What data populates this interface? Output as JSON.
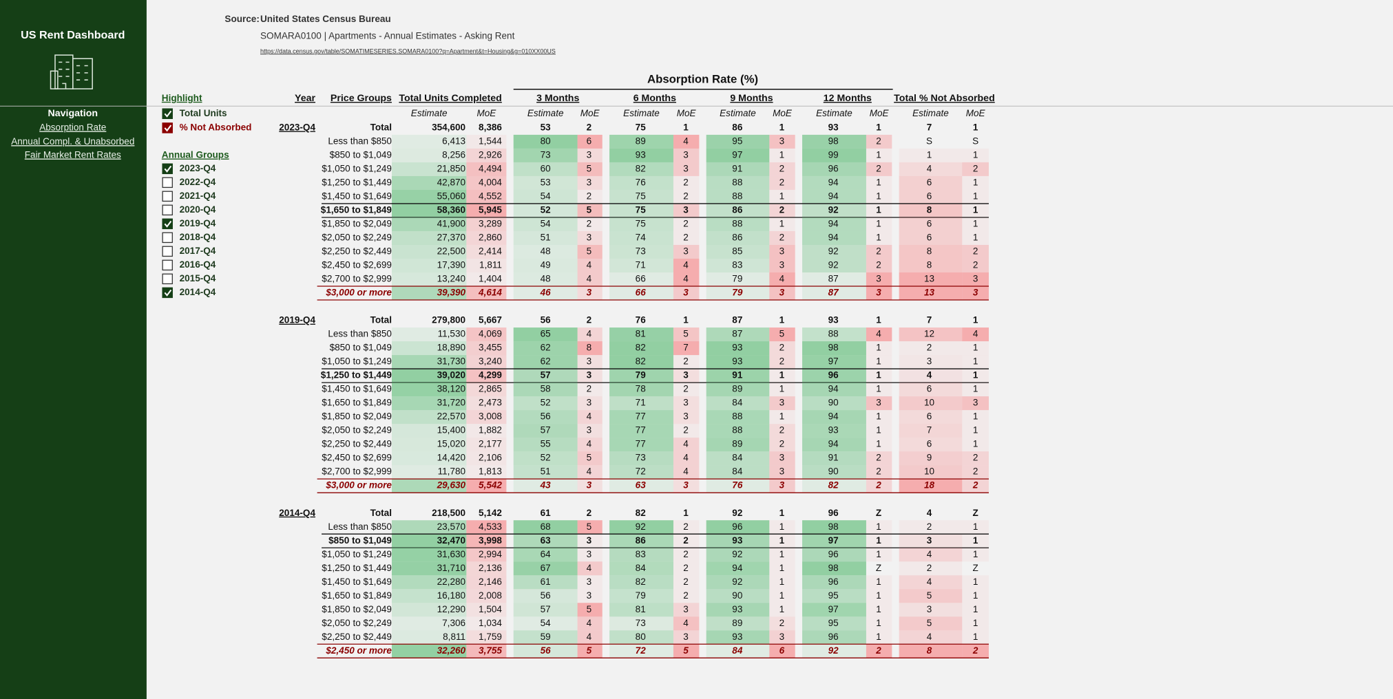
{
  "sidebar": {
    "title": "US Rent Dashboard",
    "nav_title": "Navigation",
    "links": [
      "Absorption Rate",
      "Annual Compl. & Unabsorbed",
      "Fair Market Rent Rates"
    ]
  },
  "header": {
    "source_label": "Source:",
    "source": "United States Census Bureau",
    "subtitle": "SOMARA0100  |  Apartments - Annual Estimates - Asking Rent",
    "url": "https://data.census.gov/table/SOMATIMESERIES.SOMARA0100?q=Apartment&t=Housing&g=010XX00US"
  },
  "filters": {
    "highlight_title": "Highlight",
    "highlight": [
      {
        "label": "Total Units",
        "checked": true
      },
      {
        "label": "% Not Absorbed",
        "checked": true
      }
    ],
    "groups_title": "Annual Groups",
    "groups": [
      {
        "label": "2023-Q4",
        "checked": true
      },
      {
        "label": "2022-Q4",
        "checked": false
      },
      {
        "label": "2021-Q4",
        "checked": false
      },
      {
        "label": "2020-Q4",
        "checked": false
      },
      {
        "label": "2019-Q4",
        "checked": true
      },
      {
        "label": "2018-Q4",
        "checked": false
      },
      {
        "label": "2017-Q4",
        "checked": false
      },
      {
        "label": "2016-Q4",
        "checked": false
      },
      {
        "label": "2015-Q4",
        "checked": false
      },
      {
        "label": "2014-Q4",
        "checked": true
      }
    ]
  },
  "table": {
    "super_header": "Absorption Rate (%)",
    "headers": [
      "Year",
      "Price Groups",
      "Total Units Completed",
      "3 Months",
      "6 Months",
      "9 Months",
      "12 Months",
      "Total % Not Absorbed"
    ],
    "sub_headers": [
      "Estimate",
      "MoE"
    ],
    "groups": [
      {
        "year": "2023-Q4",
        "highlighted_row": 6,
        "rows": [
          [
            "Total",
            "354,600",
            "8,386",
            "53",
            "2",
            "75",
            "1",
            "86",
            "1",
            "93",
            "1",
            "7",
            "1"
          ],
          [
            "Less than $850",
            "6,413",
            "1,544",
            "80",
            "6",
            "89",
            "4",
            "95",
            "3",
            "98",
            "2",
            "S",
            "S"
          ],
          [
            "$850 to $1,049",
            "8,256",
            "2,926",
            "73",
            "3",
            "93",
            "3",
            "97",
            "1",
            "99",
            "1",
            "1",
            "1"
          ],
          [
            "$1,050 to $1,249",
            "21,850",
            "4,494",
            "60",
            "5",
            "82",
            "3",
            "91",
            "2",
            "96",
            "2",
            "4",
            "2"
          ],
          [
            "$1,250 to $1,449",
            "42,870",
            "4,004",
            "53",
            "3",
            "76",
            "2",
            "88",
            "2",
            "94",
            "1",
            "6",
            "1"
          ],
          [
            "$1,450 to $1,649",
            "55,060",
            "4,552",
            "54",
            "2",
            "75",
            "2",
            "88",
            "1",
            "94",
            "1",
            "6",
            "1"
          ],
          [
            "$1,650 to $1,849",
            "58,360",
            "5,945",
            "52",
            "5",
            "75",
            "3",
            "86",
            "2",
            "92",
            "1",
            "8",
            "1"
          ],
          [
            "$1,850 to $2,049",
            "41,900",
            "3,289",
            "54",
            "2",
            "75",
            "2",
            "88",
            "1",
            "94",
            "1",
            "6",
            "1"
          ],
          [
            "$2,050 to $2,249",
            "27,370",
            "2,860",
            "51",
            "3",
            "74",
            "2",
            "86",
            "2",
            "94",
            "1",
            "6",
            "1"
          ],
          [
            "$2,250 to $2,449",
            "22,500",
            "2,414",
            "48",
            "5",
            "73",
            "3",
            "85",
            "3",
            "92",
            "2",
            "8",
            "2"
          ],
          [
            "$2,450 to $2,699",
            "17,390",
            "1,811",
            "49",
            "4",
            "71",
            "4",
            "83",
            "3",
            "92",
            "2",
            "8",
            "2"
          ],
          [
            "$2,700 to $2,999",
            "13,240",
            "1,404",
            "48",
            "4",
            "66",
            "4",
            "79",
            "4",
            "87",
            "3",
            "13",
            "3"
          ],
          [
            "$3,000 or more",
            "39,390",
            "4,614",
            "46",
            "3",
            "66",
            "3",
            "79",
            "3",
            "87",
            "3",
            "13",
            "3"
          ]
        ]
      },
      {
        "year": "2019-Q4",
        "highlighted_row": 4,
        "rows": [
          [
            "Total",
            "279,800",
            "5,667",
            "56",
            "2",
            "76",
            "1",
            "87",
            "1",
            "93",
            "1",
            "7",
            "1"
          ],
          [
            "Less than $850",
            "11,530",
            "4,069",
            "65",
            "4",
            "81",
            "5",
            "87",
            "5",
            "88",
            "4",
            "12",
            "4"
          ],
          [
            "$850 to $1,049",
            "18,890",
            "3,455",
            "62",
            "8",
            "82",
            "7",
            "93",
            "2",
            "98",
            "1",
            "2",
            "1"
          ],
          [
            "$1,050 to $1,249",
            "31,730",
            "3,240",
            "62",
            "3",
            "82",
            "2",
            "93",
            "2",
            "97",
            "1",
            "3",
            "1"
          ],
          [
            "$1,250 to $1,449",
            "39,020",
            "4,299",
            "57",
            "3",
            "79",
            "3",
            "91",
            "1",
            "96",
            "1",
            "4",
            "1"
          ],
          [
            "$1,450 to $1,649",
            "38,120",
            "2,865",
            "58",
            "2",
            "78",
            "2",
            "89",
            "1",
            "94",
            "1",
            "6",
            "1"
          ],
          [
            "$1,650 to $1,849",
            "31,720",
            "2,473",
            "52",
            "3",
            "71",
            "3",
            "84",
            "3",
            "90",
            "3",
            "10",
            "3"
          ],
          [
            "$1,850 to $2,049",
            "22,570",
            "3,008",
            "56",
            "4",
            "77",
            "3",
            "88",
            "1",
            "94",
            "1",
            "6",
            "1"
          ],
          [
            "$2,050 to $2,249",
            "15,400",
            "1,882",
            "57",
            "3",
            "77",
            "2",
            "88",
            "2",
            "93",
            "1",
            "7",
            "1"
          ],
          [
            "$2,250 to $2,449",
            "15,020",
            "2,177",
            "55",
            "4",
            "77",
            "4",
            "89",
            "2",
            "94",
            "1",
            "6",
            "1"
          ],
          [
            "$2,450 to $2,699",
            "14,420",
            "2,106",
            "52",
            "5",
            "73",
            "4",
            "84",
            "3",
            "91",
            "2",
            "9",
            "2"
          ],
          [
            "$2,700 to $2,999",
            "11,780",
            "1,813",
            "51",
            "4",
            "72",
            "4",
            "84",
            "3",
            "90",
            "2",
            "10",
            "2"
          ],
          [
            "$3,000 or more",
            "29,630",
            "5,542",
            "43",
            "3",
            "63",
            "3",
            "76",
            "3",
            "82",
            "2",
            "18",
            "2"
          ]
        ]
      },
      {
        "year": "2014-Q4",
        "highlighted_row": 2,
        "rows": [
          [
            "Total",
            "218,500",
            "5,142",
            "61",
            "2",
            "82",
            "1",
            "92",
            "1",
            "96",
            "Z",
            "4",
            "Z"
          ],
          [
            "Less than $850",
            "23,570",
            "4,533",
            "68",
            "5",
            "92",
            "2",
            "96",
            "1",
            "98",
            "1",
            "2",
            "1"
          ],
          [
            "$850 to $1,049",
            "32,470",
            "3,998",
            "63",
            "3",
            "86",
            "2",
            "93",
            "1",
            "97",
            "1",
            "3",
            "1"
          ],
          [
            "$1,050 to $1,249",
            "31,630",
            "2,994",
            "64",
            "3",
            "83",
            "2",
            "92",
            "1",
            "96",
            "1",
            "4",
            "1"
          ],
          [
            "$1,250 to $1,449",
            "31,710",
            "2,136",
            "67",
            "4",
            "84",
            "2",
            "94",
            "1",
            "98",
            "Z",
            "2",
            "Z"
          ],
          [
            "$1,450 to $1,649",
            "22,280",
            "2,146",
            "61",
            "3",
            "82",
            "2",
            "92",
            "1",
            "96",
            "1",
            "4",
            "1"
          ],
          [
            "$1,650 to $1,849",
            "16,180",
            "2,008",
            "56",
            "3",
            "79",
            "2",
            "90",
            "1",
            "95",
            "1",
            "5",
            "1"
          ],
          [
            "$1,850 to $2,049",
            "12,290",
            "1,504",
            "57",
            "5",
            "81",
            "3",
            "93",
            "1",
            "97",
            "1",
            "3",
            "1"
          ],
          [
            "$2,050 to $2,249",
            "7,306",
            "1,034",
            "54",
            "4",
            "73",
            "4",
            "89",
            "2",
            "95",
            "1",
            "5",
            "1"
          ],
          [
            "$2,250 to $2,449",
            "8,811",
            "1,759",
            "59",
            "4",
            "80",
            "3",
            "93",
            "3",
            "96",
            "1",
            "4",
            "1"
          ],
          [
            "$2,450 or more",
            "32,260",
            "3,755",
            "56",
            "5",
            "72",
            "5",
            "84",
            "6",
            "92",
            "2",
            "8",
            "2"
          ]
        ]
      }
    ]
  }
}
